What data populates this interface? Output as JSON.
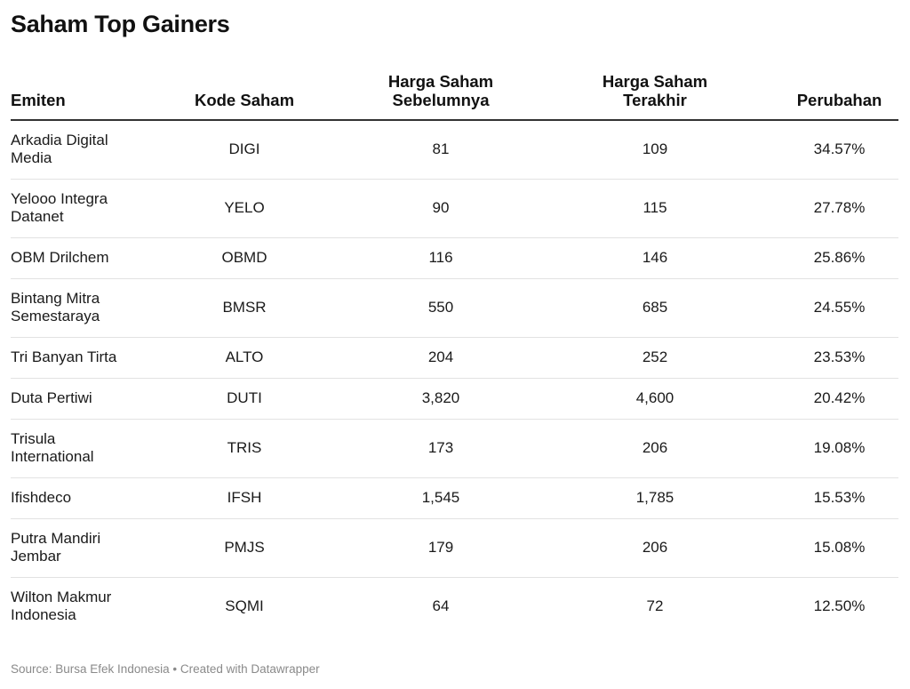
{
  "title": "Saham Top Gainers",
  "source": "Source: Bursa Efek Indonesia • Created with Datawrapper",
  "chart_data": {
    "type": "table",
    "title": "Saham Top Gainers",
    "columns": [
      "Emiten",
      "Kode Saham",
      "Harga Saham Sebelumnya",
      "Harga Saham Terakhir",
      "Perubahan"
    ],
    "header": {
      "emiten": "Emiten",
      "kode": "Kode Saham",
      "sebelumnya_1": "Harga Saham",
      "sebelumnya_2": "Sebelumnya",
      "terakhir_1": "Harga Saham",
      "terakhir_2": "Terakhir",
      "perubahan": "Perubahan"
    },
    "rows": [
      {
        "emiten": "Arkadia Digital Media",
        "kode": "DIGI",
        "sebelumnya": "81",
        "terakhir": "109",
        "perubahan": "34.57%"
      },
      {
        "emiten": "Yelooo Integra Datanet",
        "kode": "YELO",
        "sebelumnya": "90",
        "terakhir": "115",
        "perubahan": "27.78%"
      },
      {
        "emiten": "OBM Drilchem",
        "kode": "OBMD",
        "sebelumnya": "116",
        "terakhir": "146",
        "perubahan": "25.86%"
      },
      {
        "emiten": "Bintang Mitra Semestaraya",
        "kode": "BMSR",
        "sebelumnya": "550",
        "terakhir": "685",
        "perubahan": "24.55%"
      },
      {
        "emiten": "Tri Banyan Tirta",
        "kode": "ALTO",
        "sebelumnya": "204",
        "terakhir": "252",
        "perubahan": "23.53%"
      },
      {
        "emiten": "Duta Pertiwi",
        "kode": "DUTI",
        "sebelumnya": "3,820",
        "terakhir": "4,600",
        "perubahan": "20.42%"
      },
      {
        "emiten": "Trisula International",
        "kode": "TRIS",
        "sebelumnya": "173",
        "terakhir": "206",
        "perubahan": "19.08%"
      },
      {
        "emiten": "Ifishdeco",
        "kode": "IFSH",
        "sebelumnya": "1,545",
        "terakhir": "1,785",
        "perubahan": "15.53%"
      },
      {
        "emiten": "Putra Mandiri Jembar",
        "kode": "PMJS",
        "sebelumnya": "179",
        "terakhir": "206",
        "perubahan": "15.08%"
      },
      {
        "emiten": "Wilton Makmur Indonesia",
        "kode": "SQMI",
        "sebelumnya": "64",
        "terakhir": "72",
        "perubahan": "12.50%"
      }
    ]
  }
}
